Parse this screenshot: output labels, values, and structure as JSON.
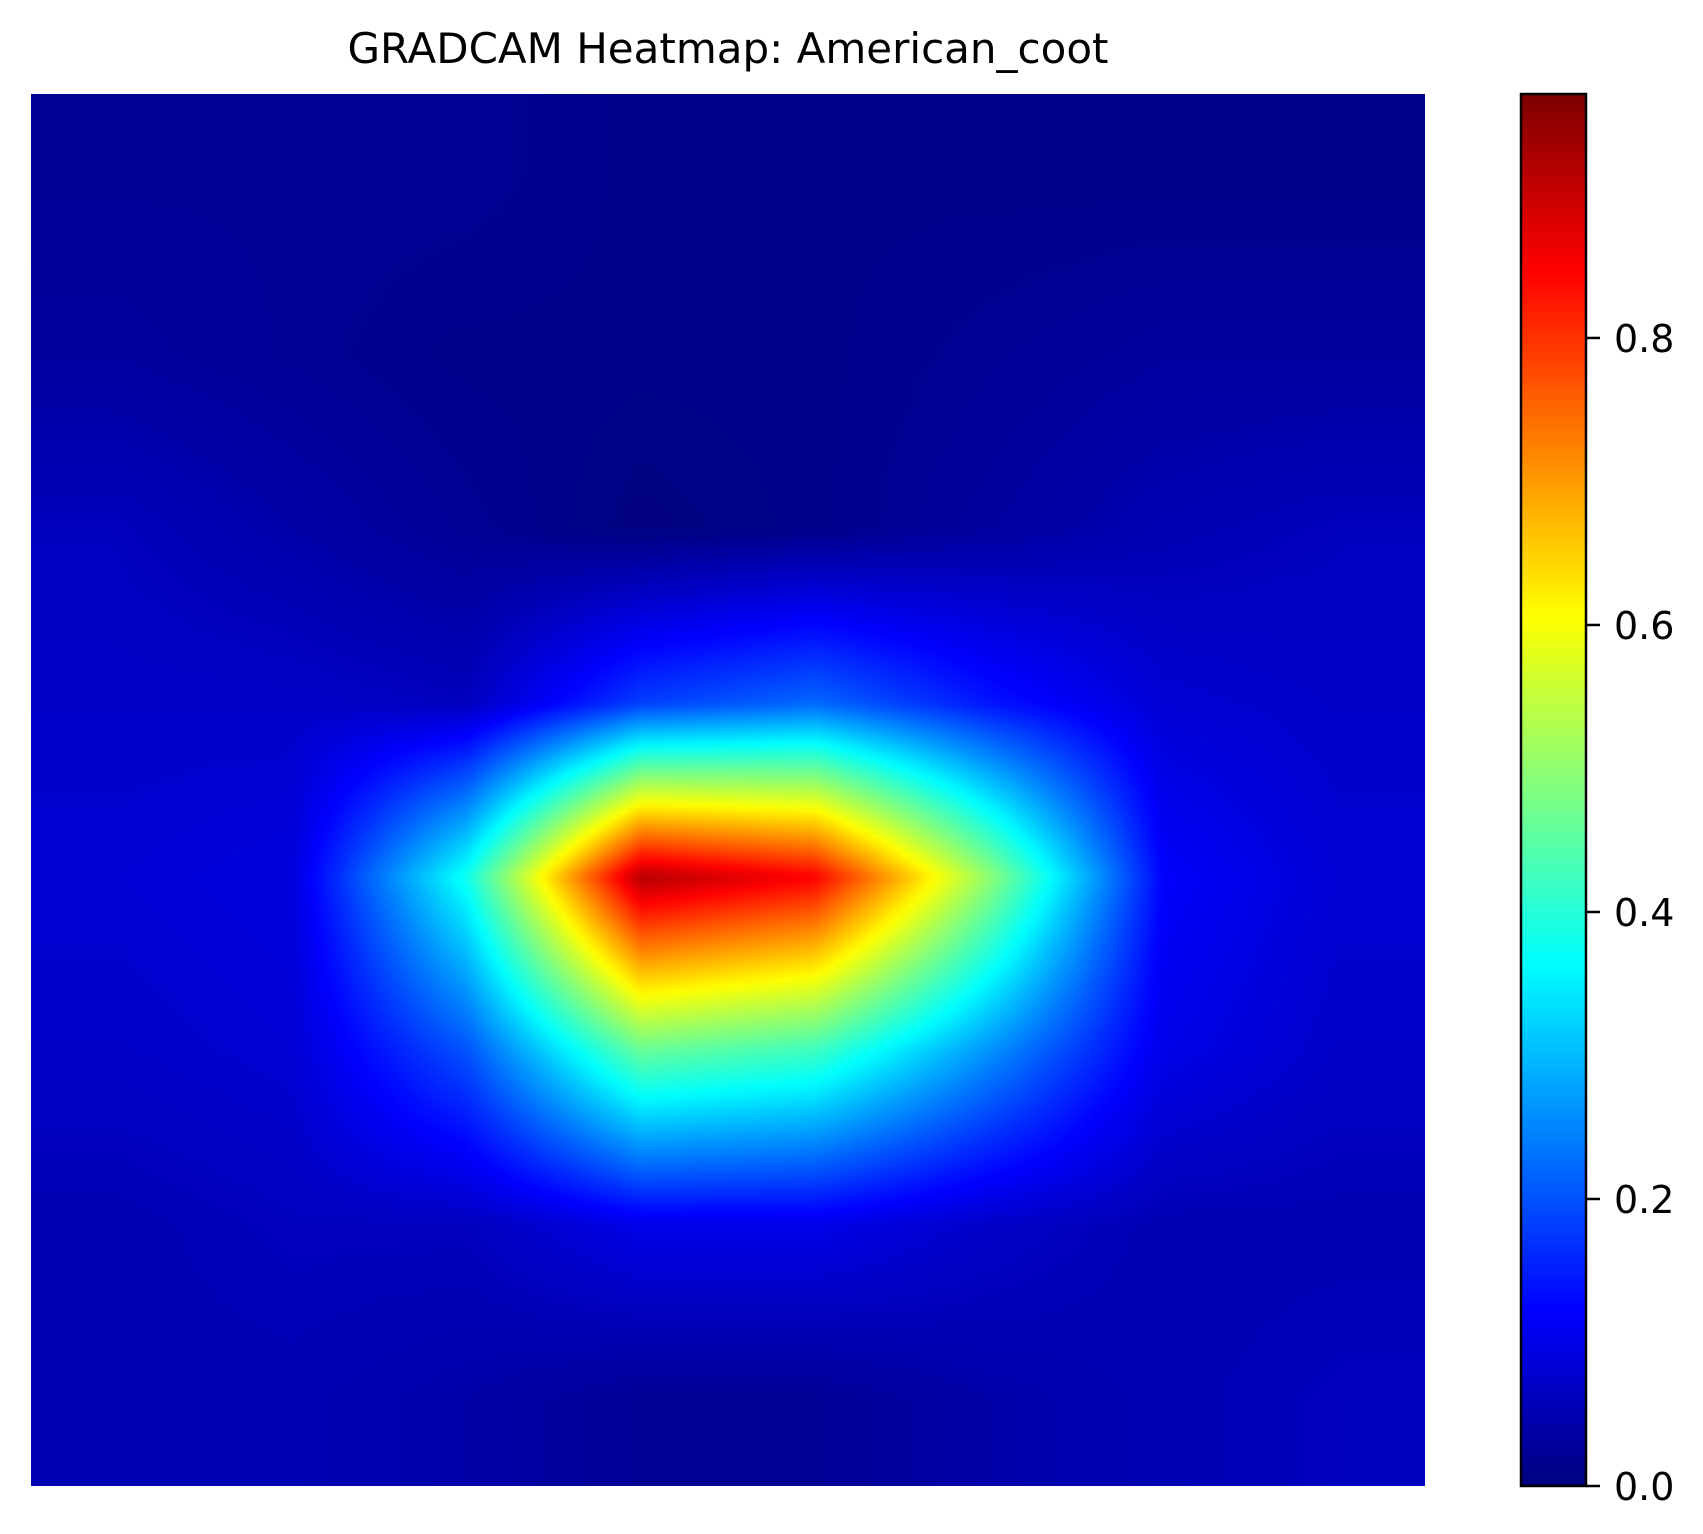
{
  "chart_data": {
    "type": "heatmap",
    "title": "GRADCAM Heatmap: American_coot",
    "colormap": "jet",
    "axes_visible": false,
    "value_range": [
      0.0,
      0.97
    ],
    "grid": false,
    "colorbar": {
      "position": "right",
      "ticks": [
        0.0,
        0.2,
        0.4,
        0.6,
        0.8
      ],
      "tick_labels": [
        "0.0",
        "0.2",
        "0.4",
        "0.6",
        "0.8"
      ]
    },
    "matrix": [
      [
        0.02,
        0.02,
        0.02,
        0.01,
        0.01,
        0.01,
        0.01,
        0.01
      ],
      [
        0.03,
        0.02,
        0.01,
        0.01,
        0.01,
        0.02,
        0.03,
        0.03
      ],
      [
        0.06,
        0.04,
        0.02,
        0.0,
        0.01,
        0.03,
        0.05,
        0.06
      ],
      [
        0.07,
        0.07,
        0.06,
        0.18,
        0.22,
        0.14,
        0.08,
        0.07
      ],
      [
        0.08,
        0.09,
        0.38,
        0.92,
        0.85,
        0.5,
        0.12,
        0.08
      ],
      [
        0.07,
        0.08,
        0.2,
        0.46,
        0.42,
        0.26,
        0.1,
        0.07
      ],
      [
        0.05,
        0.06,
        0.06,
        0.1,
        0.1,
        0.07,
        0.05,
        0.05
      ],
      [
        0.05,
        0.05,
        0.04,
        0.02,
        0.02,
        0.04,
        0.05,
        0.06
      ]
    ]
  }
}
